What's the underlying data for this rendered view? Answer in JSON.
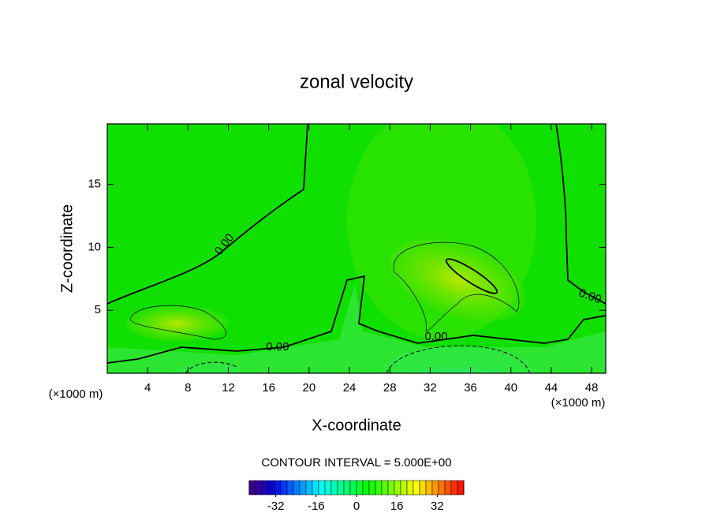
{
  "chart_data": {
    "type": "contour",
    "title": "zonal velocity",
    "x_label": "X-coordinate",
    "y_label": "Z-coordinate",
    "x_unit": "(×1000 m)",
    "y_unit": "(×1000 m)",
    "xlim": [
      0,
      49.4
    ],
    "ylim": [
      0,
      19.8
    ],
    "xticks": [
      4,
      8,
      12,
      16,
      20,
      24,
      28,
      32,
      36,
      40,
      44,
      48
    ],
    "yticks": [
      5,
      10,
      15
    ],
    "contour_labels": [
      {
        "value": 0,
        "label": "0.00"
      },
      {
        "value": 0,
        "label": "0.00"
      },
      {
        "value": 0,
        "label": "0.00"
      },
      {
        "value": 0,
        "label": "0.00"
      }
    ],
    "contour_interval": {
      "value": 5,
      "label": "CONTOUR INTERVAL = 5.000E+00"
    },
    "colorbar_lim": [
      -42.5,
      42.5
    ],
    "colorbar_ticks": [
      -32,
      -16,
      0,
      16,
      32
    ]
  }
}
